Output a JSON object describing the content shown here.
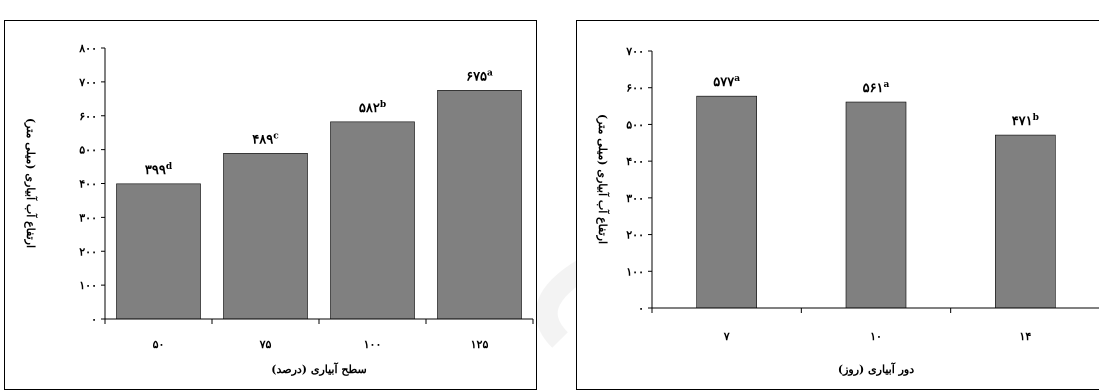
{
  "colors": {
    "bar": "#808080",
    "axis": "#000000",
    "border": "#000000",
    "watermark": "#f2f2f2"
  },
  "chart_data": [
    {
      "type": "bar",
      "categories": [
        "۵۰",
        "۷۵",
        "۱۰۰",
        "۱۲۵"
      ],
      "values": [
        399,
        489,
        582,
        675
      ],
      "value_labels": [
        "۳۹۹",
        "۴۸۹",
        "۵۸۲",
        "۶۷۵"
      ],
      "letters": [
        "d",
        "c",
        "b",
        "a"
      ],
      "ylim": [
        0,
        800
      ],
      "yticks": [
        0,
        100,
        200,
        300,
        400,
        500,
        600,
        700,
        800
      ],
      "ytick_labels": [
        "۰",
        "۱۰۰",
        "۲۰۰",
        "۳۰۰",
        "۴۰۰",
        "۵۰۰",
        "۶۰۰",
        "۷۰۰",
        "۸۰۰"
      ],
      "xlabel": "سطح آبیاری (درصد)",
      "ylabel": "ارتفاع آب آبیاری (میلی متر)",
      "grid": false,
      "legend": "none"
    },
    {
      "type": "bar",
      "categories": [
        "۷",
        "۱۰",
        "۱۴"
      ],
      "values": [
        577,
        561,
        471
      ],
      "value_labels": [
        "۵۷۷",
        "۵۶۱",
        "۴۷۱"
      ],
      "letters": [
        "a",
        "a",
        "b"
      ],
      "ylim": [
        0,
        700
      ],
      "yticks": [
        0,
        100,
        200,
        300,
        400,
        500,
        600,
        700
      ],
      "ytick_labels": [
        "۰",
        "۱۰۰",
        "۲۰۰",
        "۳۰۰",
        "۴۰۰",
        "۵۰۰",
        "۶۰۰",
        "۷۰۰"
      ],
      "xlabel": "دور آبیاری (روز)",
      "ylabel": "ارتفاع آب آبیاری (میلی متر)",
      "grid": false,
      "legend": "none"
    }
  ]
}
